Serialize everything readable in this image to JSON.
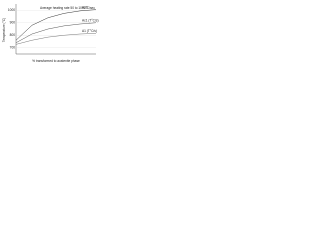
{
  "chart_data": {
    "type": "line",
    "annotation": "Average heating rate 50 to 1000°C/sec",
    "y_label": "Temperature (°C)",
    "x_label": "% transformed to austenite phase",
    "x": [
      0,
      20,
      40,
      60,
      80,
      100
    ],
    "xlim": [
      0,
      100
    ],
    "ylim": [
      650,
      1050
    ],
    "yticks": [
      700,
      800,
      900,
      1000
    ],
    "grid": true,
    "series": [
      {
        "name": "Ac3",
        "color": "#333333",
        "values": [
          760,
          880,
          940,
          975,
          995,
          1005
        ]
      },
      {
        "name": "Ac1 (T°C/s)",
        "color": "#555555",
        "values": [
          740,
          810,
          850,
          875,
          890,
          900
        ]
      },
      {
        "name": "A1 (T°C/s)",
        "color": "#777777",
        "values": [
          727,
          760,
          785,
          800,
          810,
          815
        ]
      }
    ]
  }
}
